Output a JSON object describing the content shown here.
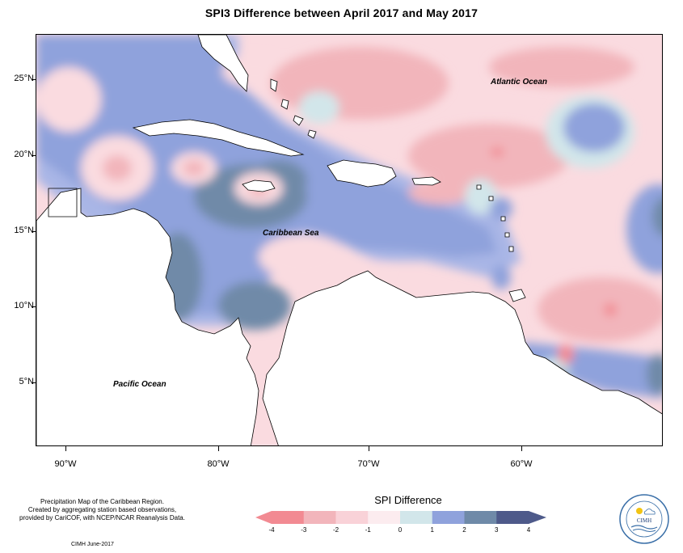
{
  "title": "SPI3 Difference between April 2017 and May 2017",
  "map": {
    "ocean_labels": {
      "atlantic": "Atlantic Ocean",
      "caribbean": "Caribbean Sea",
      "pacific": "Pacific Ocean"
    },
    "y_axis_labels": [
      "25°N",
      "20°N",
      "15°N",
      "10°N",
      "5°N"
    ],
    "x_axis_labels": [
      "90°W",
      "80°W",
      "70°W",
      "60°W"
    ]
  },
  "legend": {
    "title": "SPI Difference",
    "tick_labels": [
      "-4",
      "-3",
      "-2",
      "-1",
      "0",
      "1",
      "2",
      "3",
      "4"
    ],
    "colors": [
      "#f28a92",
      "#f2b5bb",
      "#f9d2d8",
      "#fcecef",
      "#d2e6ea",
      "#8fa2dc",
      "#6f8aa8",
      "#4e5a8a"
    ]
  },
  "footer": {
    "note_lines": [
      "Precipitation Map of the Caribbean Region.",
      "Created by aggregating station based observations,",
      "provided by CariCOF, with NCEP/NCAR Reanalysis Data."
    ],
    "credit": "CIMH June-2017"
  },
  "logo": {
    "text": "CIMH"
  }
}
